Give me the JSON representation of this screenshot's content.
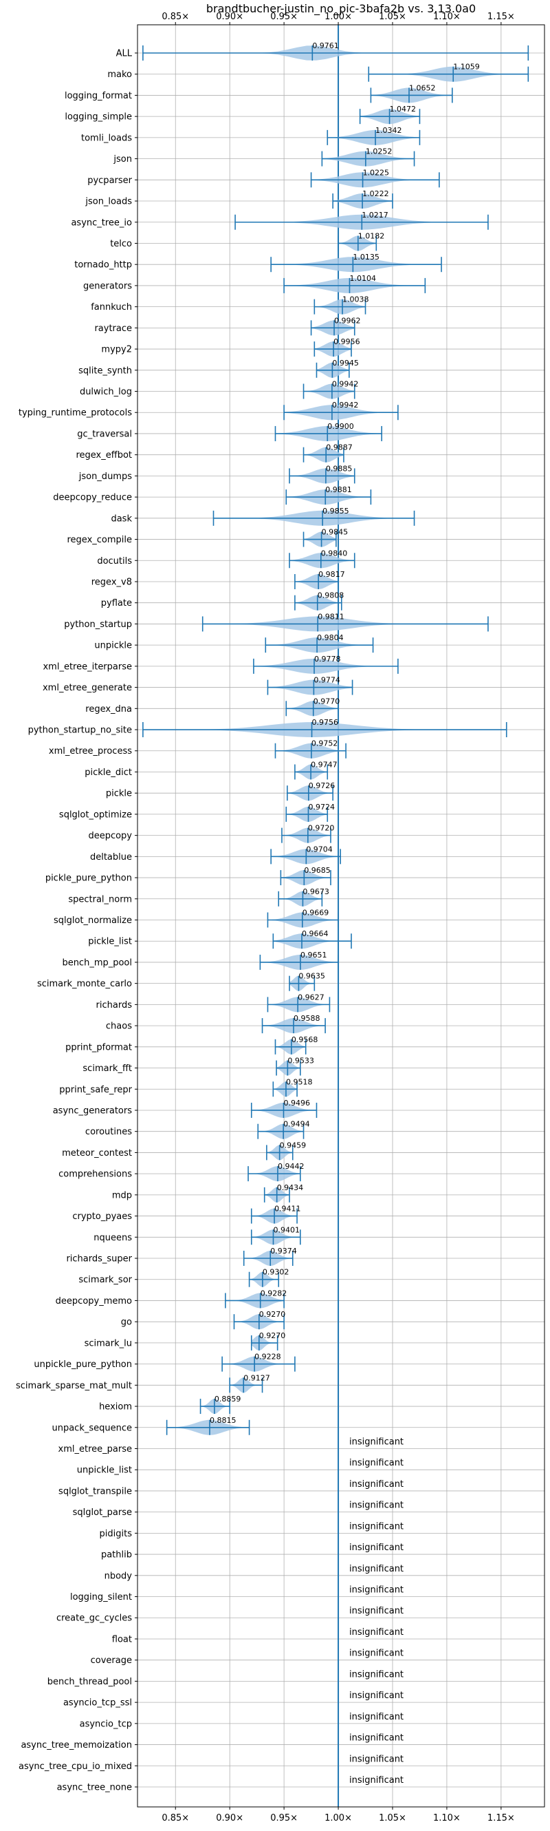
{
  "chart_data": {
    "type": "violin",
    "title": "brandtbucher-justin_no_pic-3bafa2b vs. 3.13.0a0",
    "xlim": [
      0.815,
      1.19
    ],
    "x_ticks": [
      0.85,
      0.9,
      0.95,
      1.0,
      1.05,
      1.1,
      1.15
    ],
    "x_tick_labels": [
      "0.85×",
      "0.90×",
      "0.95×",
      "1.00×",
      "1.05×",
      "1.10×",
      "1.15×"
    ],
    "reference_line": 1.0,
    "grid": true,
    "colors": {
      "violin": "#a6c8e6",
      "line": "#1f77b4",
      "grid": "#b0b0b0"
    },
    "insignificant_text": "insignificant",
    "benchmarks": [
      {
        "name": "ALL",
        "label": "0.9761",
        "mean": 0.9761,
        "min": 0.82,
        "max": 1.175,
        "spread": 0.04
      },
      {
        "name": "mako",
        "label": "1.1059",
        "mean": 1.1059,
        "min": 1.028,
        "max": 1.175,
        "spread": 0.04
      },
      {
        "name": "logging_format",
        "label": "1.0652",
        "mean": 1.0652,
        "min": 1.03,
        "max": 1.105,
        "spread": 0.03
      },
      {
        "name": "logging_simple",
        "label": "1.0472",
        "mean": 1.0472,
        "min": 1.02,
        "max": 1.075,
        "spread": 0.025
      },
      {
        "name": "tomli_loads",
        "label": "1.0342",
        "mean": 1.0342,
        "min": 0.99,
        "max": 1.075,
        "spread": 0.035
      },
      {
        "name": "json",
        "label": "1.0252",
        "mean": 1.0252,
        "min": 0.985,
        "max": 1.07,
        "spread": 0.035
      },
      {
        "name": "pycparser",
        "label": "1.0225",
        "mean": 1.0225,
        "min": 0.975,
        "max": 1.093,
        "spread": 0.04
      },
      {
        "name": "json_loads",
        "label": "1.0222",
        "mean": 1.0222,
        "min": 0.995,
        "max": 1.05,
        "spread": 0.025
      },
      {
        "name": "async_tree_io",
        "label": "1.0217",
        "mean": 1.0217,
        "min": 0.905,
        "max": 1.138,
        "spread": 0.06
      },
      {
        "name": "telco",
        "label": "1.0182",
        "mean": 1.0182,
        "min": 1.0,
        "max": 1.035,
        "spread": 0.015
      },
      {
        "name": "tornado_http",
        "label": "1.0135",
        "mean": 1.0135,
        "min": 0.938,
        "max": 1.095,
        "spread": 0.05
      },
      {
        "name": "generators",
        "label": "1.0104",
        "mean": 1.0104,
        "min": 0.95,
        "max": 1.08,
        "spread": 0.045
      },
      {
        "name": "fannkuch",
        "label": "1.0038",
        "mean": 1.0038,
        "min": 0.978,
        "max": 1.025,
        "spread": 0.02
      },
      {
        "name": "raytrace",
        "label": "0.9962",
        "mean": 0.9962,
        "min": 0.975,
        "max": 1.015,
        "spread": 0.02
      },
      {
        "name": "mypy2",
        "label": "0.9956",
        "mean": 0.9956,
        "min": 0.978,
        "max": 1.012,
        "spread": 0.017
      },
      {
        "name": "sqlite_synth",
        "label": "0.9945",
        "mean": 0.9945,
        "min": 0.98,
        "max": 1.01,
        "spread": 0.015
      },
      {
        "name": "dulwich_log",
        "label": "0.9942",
        "mean": 0.9942,
        "min": 0.968,
        "max": 1.015,
        "spread": 0.02
      },
      {
        "name": "typing_runtime_protocols",
        "label": "0.9942",
        "mean": 0.9942,
        "min": 0.95,
        "max": 1.055,
        "spread": 0.04
      },
      {
        "name": "gc_traversal",
        "label": "0.9900",
        "mean": 0.99,
        "min": 0.942,
        "max": 1.04,
        "spread": 0.04
      },
      {
        "name": "regex_effbot",
        "label": "0.9887",
        "mean": 0.9887,
        "min": 0.968,
        "max": 1.005,
        "spread": 0.017
      },
      {
        "name": "json_dumps",
        "label": "0.9885",
        "mean": 0.9885,
        "min": 0.955,
        "max": 1.015,
        "spread": 0.025
      },
      {
        "name": "deepcopy_reduce",
        "label": "0.9881",
        "mean": 0.9881,
        "min": 0.952,
        "max": 1.03,
        "spread": 0.03
      },
      {
        "name": "dask",
        "label": "0.9855",
        "mean": 0.9855,
        "min": 0.885,
        "max": 1.07,
        "spread": 0.055
      },
      {
        "name": "regex_compile",
        "label": "0.9845",
        "mean": 0.9845,
        "min": 0.968,
        "max": 0.998,
        "spread": 0.015
      },
      {
        "name": "docutils",
        "label": "0.9840",
        "mean": 0.984,
        "min": 0.955,
        "max": 1.015,
        "spread": 0.025
      },
      {
        "name": "regex_v8",
        "label": "0.9817",
        "mean": 0.9817,
        "min": 0.96,
        "max": 1.0,
        "spread": 0.018
      },
      {
        "name": "pyflate",
        "label": "0.9808",
        "mean": 0.9808,
        "min": 0.96,
        "max": 1.003,
        "spread": 0.018
      },
      {
        "name": "python_startup",
        "label": "0.9811",
        "mean": 0.9811,
        "min": 0.875,
        "max": 1.138,
        "spread": 0.065
      },
      {
        "name": "unpickle",
        "label": "0.9804",
        "mean": 0.9804,
        "min": 0.933,
        "max": 1.032,
        "spread": 0.035
      },
      {
        "name": "xml_etree_iterparse",
        "label": "0.9778",
        "mean": 0.9778,
        "min": 0.922,
        "max": 1.055,
        "spread": 0.045
      },
      {
        "name": "xml_etree_generate",
        "label": "0.9774",
        "mean": 0.9774,
        "min": 0.935,
        "max": 1.013,
        "spread": 0.035
      },
      {
        "name": "regex_dna",
        "label": "0.9770",
        "mean": 0.977,
        "min": 0.952,
        "max": 1.0,
        "spread": 0.02
      },
      {
        "name": "python_startup_no_site",
        "label": "0.9756",
        "mean": 0.9756,
        "min": 0.82,
        "max": 1.155,
        "spread": 0.085
      },
      {
        "name": "xml_etree_process",
        "label": "0.9752",
        "mean": 0.9752,
        "min": 0.942,
        "max": 1.007,
        "spread": 0.025
      },
      {
        "name": "pickle_dict",
        "label": "0.9747",
        "mean": 0.9747,
        "min": 0.96,
        "max": 0.99,
        "spread": 0.013
      },
      {
        "name": "pickle",
        "label": "0.9726",
        "mean": 0.9726,
        "min": 0.953,
        "max": 0.995,
        "spread": 0.017
      },
      {
        "name": "sqlglot_optimize",
        "label": "0.9724",
        "mean": 0.9724,
        "min": 0.952,
        "max": 0.99,
        "spread": 0.016
      },
      {
        "name": "deepcopy",
        "label": "0.9720",
        "mean": 0.972,
        "min": 0.948,
        "max": 0.993,
        "spread": 0.018
      },
      {
        "name": "deltablue",
        "label": "0.9704",
        "mean": 0.9704,
        "min": 0.938,
        "max": 1.002,
        "spread": 0.025
      },
      {
        "name": "pickle_pure_python",
        "label": "0.9685",
        "mean": 0.9685,
        "min": 0.947,
        "max": 0.993,
        "spread": 0.018
      },
      {
        "name": "spectral_norm",
        "label": "0.9673",
        "mean": 0.9673,
        "min": 0.945,
        "max": 0.985,
        "spread": 0.015
      },
      {
        "name": "sqlglot_normalize",
        "label": "0.9669",
        "mean": 0.9669,
        "min": 0.935,
        "max": 1.0,
        "spread": 0.025
      },
      {
        "name": "pickle_list",
        "label": "0.9664",
        "mean": 0.9664,
        "min": 0.94,
        "max": 1.012,
        "spread": 0.025
      },
      {
        "name": "bench_mp_pool",
        "label": "0.9651",
        "mean": 0.9651,
        "min": 0.928,
        "max": 1.0,
        "spread": 0.028
      },
      {
        "name": "scimark_monte_carlo",
        "label": "0.9635",
        "mean": 0.9635,
        "min": 0.955,
        "max": 0.978,
        "spread": 0.01
      },
      {
        "name": "richards",
        "label": "0.9627",
        "mean": 0.9627,
        "min": 0.935,
        "max": 0.992,
        "spread": 0.022
      },
      {
        "name": "chaos",
        "label": "0.9588",
        "mean": 0.9588,
        "min": 0.93,
        "max": 0.988,
        "spread": 0.022
      },
      {
        "name": "pprint_pformat",
        "label": "0.9568",
        "mean": 0.9568,
        "min": 0.942,
        "max": 0.97,
        "spread": 0.012
      },
      {
        "name": "scimark_fft",
        "label": "0.9533",
        "mean": 0.9533,
        "min": 0.943,
        "max": 0.965,
        "spread": 0.01
      },
      {
        "name": "pprint_safe_repr",
        "label": "0.9518",
        "mean": 0.9518,
        "min": 0.94,
        "max": 0.962,
        "spread": 0.01
      },
      {
        "name": "async_generators",
        "label": "0.9496",
        "mean": 0.9496,
        "min": 0.92,
        "max": 0.98,
        "spread": 0.022
      },
      {
        "name": "coroutines",
        "label": "0.9494",
        "mean": 0.9494,
        "min": 0.926,
        "max": 0.968,
        "spread": 0.016
      },
      {
        "name": "meteor_contest",
        "label": "0.9459",
        "mean": 0.9459,
        "min": 0.934,
        "max": 0.958,
        "spread": 0.01
      },
      {
        "name": "comprehensions",
        "label": "0.9442",
        "mean": 0.9442,
        "min": 0.917,
        "max": 0.965,
        "spread": 0.018
      },
      {
        "name": "mdp",
        "label": "0.9434",
        "mean": 0.9434,
        "min": 0.932,
        "max": 0.955,
        "spread": 0.01
      },
      {
        "name": "crypto_pyaes",
        "label": "0.9411",
        "mean": 0.9411,
        "min": 0.92,
        "max": 0.962,
        "spread": 0.015
      },
      {
        "name": "nqueens",
        "label": "0.9401",
        "mean": 0.9401,
        "min": 0.92,
        "max": 0.965,
        "spread": 0.016
      },
      {
        "name": "richards_super",
        "label": "0.9374",
        "mean": 0.9374,
        "min": 0.913,
        "max": 0.958,
        "spread": 0.016
      },
      {
        "name": "scimark_sor",
        "label": "0.9302",
        "mean": 0.9302,
        "min": 0.918,
        "max": 0.945,
        "spread": 0.01
      },
      {
        "name": "deepcopy_memo",
        "label": "0.9282",
        "mean": 0.9282,
        "min": 0.896,
        "max": 0.95,
        "spread": 0.02
      },
      {
        "name": "go",
        "label": "0.9270",
        "mean": 0.927,
        "min": 0.904,
        "max": 0.95,
        "spread": 0.016
      },
      {
        "name": "scimark_lu",
        "label": "0.9270",
        "mean": 0.927,
        "min": 0.92,
        "max": 0.944,
        "spread": 0.01
      },
      {
        "name": "unpickle_pure_python",
        "label": "0.9228",
        "mean": 0.9228,
        "min": 0.893,
        "max": 0.96,
        "spread": 0.02
      },
      {
        "name": "scimark_sparse_mat_mult",
        "label": "0.9127",
        "mean": 0.9127,
        "min": 0.9,
        "max": 0.93,
        "spread": 0.01
      },
      {
        "name": "hexiom",
        "label": "0.8859",
        "mean": 0.8859,
        "min": 0.873,
        "max": 0.9,
        "spread": 0.01
      },
      {
        "name": "unpack_sequence",
        "label": "0.8815",
        "mean": 0.8815,
        "min": 0.842,
        "max": 0.918,
        "spread": 0.028
      },
      {
        "name": "xml_etree_parse",
        "insignificant": true
      },
      {
        "name": "unpickle_list",
        "insignificant": true
      },
      {
        "name": "sqlglot_transpile",
        "insignificant": true
      },
      {
        "name": "sqlglot_parse",
        "insignificant": true
      },
      {
        "name": "pidigits",
        "insignificant": true
      },
      {
        "name": "pathlib",
        "insignificant": true
      },
      {
        "name": "nbody",
        "insignificant": true
      },
      {
        "name": "logging_silent",
        "insignificant": true
      },
      {
        "name": "create_gc_cycles",
        "insignificant": true
      },
      {
        "name": "float",
        "insignificant": true
      },
      {
        "name": "coverage",
        "insignificant": true
      },
      {
        "name": "bench_thread_pool",
        "insignificant": true
      },
      {
        "name": "asyncio_tcp_ssl",
        "insignificant": true
      },
      {
        "name": "asyncio_tcp",
        "insignificant": true
      },
      {
        "name": "async_tree_memoization",
        "insignificant": true
      },
      {
        "name": "async_tree_cpu_io_mixed",
        "insignificant": true
      },
      {
        "name": "async_tree_none",
        "insignificant": true
      }
    ]
  }
}
